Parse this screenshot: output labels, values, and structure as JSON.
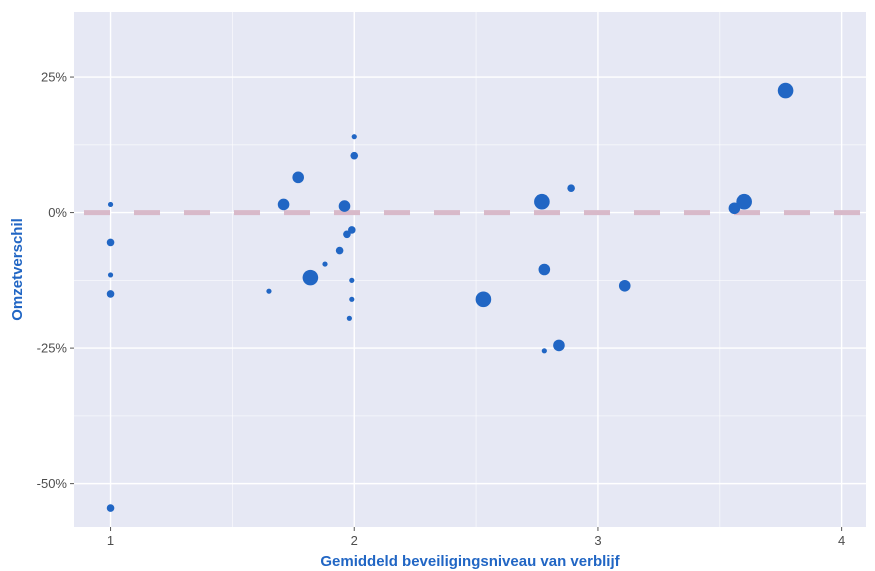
{
  "chart_data": {
    "type": "scatter",
    "title": "",
    "xlabel": "Gemiddeld beveiligingsniveau van verblijf",
    "ylabel": "Omzetverschil",
    "xlim": [
      0.85,
      4.1
    ],
    "ylim": [
      -58,
      37
    ],
    "x_ticks": [
      1,
      2,
      3,
      4
    ],
    "x_tick_labels": [
      "1",
      "2",
      "3",
      "4"
    ],
    "y_ticks": [
      25,
      0,
      -25,
      -50
    ],
    "y_tick_labels": [
      "25%",
      "0%",
      "-25%",
      "-50%"
    ],
    "reference_line": {
      "y": 0,
      "style": "dashed",
      "color": "#d8b9c9"
    },
    "grid": true,
    "legend": "none",
    "colors": {
      "panel": "#e6e8f4",
      "grid": "#ffffff",
      "point": "#2166c4",
      "axis_title": "#2166c4"
    },
    "points": [
      {
        "x": 1.0,
        "y": 1.5,
        "size": 1
      },
      {
        "x": 1.0,
        "y": -5.5,
        "size": 2
      },
      {
        "x": 1.0,
        "y": -11.5,
        "size": 1
      },
      {
        "x": 1.0,
        "y": -15,
        "size": 2
      },
      {
        "x": 1.0,
        "y": -54.5,
        "size": 2
      },
      {
        "x": 1.65,
        "y": -14.5,
        "size": 1
      },
      {
        "x": 1.71,
        "y": 1.5,
        "size": 3
      },
      {
        "x": 1.77,
        "y": 6.5,
        "size": 3
      },
      {
        "x": 1.82,
        "y": -12,
        "size": 4
      },
      {
        "x": 1.88,
        "y": -9.5,
        "size": 1
      },
      {
        "x": 1.94,
        "y": -7,
        "size": 2
      },
      {
        "x": 1.96,
        "y": 1.2,
        "size": 3
      },
      {
        "x": 1.97,
        "y": -4,
        "size": 2
      },
      {
        "x": 1.99,
        "y": -3.2,
        "size": 2
      },
      {
        "x": 1.99,
        "y": -12.5,
        "size": 1
      },
      {
        "x": 1.99,
        "y": -16,
        "size": 1
      },
      {
        "x": 1.98,
        "y": -19.5,
        "size": 1
      },
      {
        "x": 2.0,
        "y": 14,
        "size": 1
      },
      {
        "x": 2.0,
        "y": 10.5,
        "size": 2
      },
      {
        "x": 2.53,
        "y": -16,
        "size": 4
      },
      {
        "x": 2.77,
        "y": 2,
        "size": 4
      },
      {
        "x": 2.78,
        "y": -10.5,
        "size": 3
      },
      {
        "x": 2.78,
        "y": -25.5,
        "size": 1
      },
      {
        "x": 2.84,
        "y": -24.5,
        "size": 3
      },
      {
        "x": 2.89,
        "y": 4.5,
        "size": 2
      },
      {
        "x": 3.11,
        "y": -13.5,
        "size": 3
      },
      {
        "x": 3.56,
        "y": 0.8,
        "size": 3
      },
      {
        "x": 3.6,
        "y": 2,
        "size": 4
      },
      {
        "x": 3.77,
        "y": 22.5,
        "size": 4
      }
    ]
  }
}
